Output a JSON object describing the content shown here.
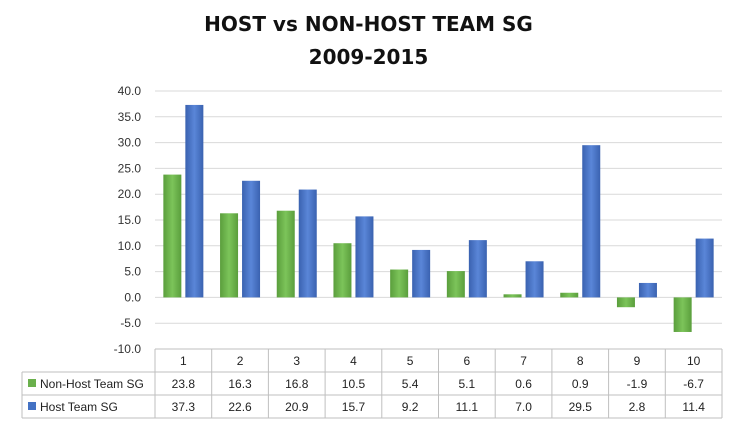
{
  "chart_data": {
    "type": "bar",
    "title_lines": [
      "HOST vs NON-HOST TEAM SG",
      "2009-2015"
    ],
    "categories": [
      "1",
      "2",
      "3",
      "4",
      "5",
      "6",
      "7",
      "8",
      "9",
      "10"
    ],
    "series": [
      {
        "name": "Non-Host Team SG",
        "color": "#6ab04c",
        "values": [
          23.8,
          16.3,
          16.8,
          10.5,
          5.4,
          5.1,
          0.6,
          0.9,
          -1.9,
          -6.7
        ],
        "labels": [
          "23.8",
          "16.3",
          "16.8",
          "10.5",
          "5.4",
          "5.1",
          "0.6",
          "0.9",
          "-1.9",
          "-6.7"
        ]
      },
      {
        "name": "Host Team SG",
        "color": "#4472c4",
        "values": [
          37.3,
          22.6,
          20.9,
          15.7,
          9.2,
          11.1,
          7.0,
          29.5,
          2.8,
          11.4
        ],
        "labels": [
          "37.3",
          "22.6",
          "20.9",
          "15.7",
          "9.2",
          "11.1",
          "7.0",
          "29.5",
          "2.8",
          "11.4"
        ]
      }
    ],
    "ylim": [
      -10,
      40
    ],
    "yticks": [
      40,
      35,
      30,
      25,
      20,
      15,
      10,
      5,
      0,
      -5,
      -10
    ],
    "ytick_labels": [
      "40.0",
      "35.0",
      "30.0",
      "25.0",
      "20.0",
      "15.0",
      "10.0",
      "5.0",
      "0.0",
      "-5.0",
      "-10.0"
    ],
    "grid": true,
    "legend": "data-table"
  }
}
